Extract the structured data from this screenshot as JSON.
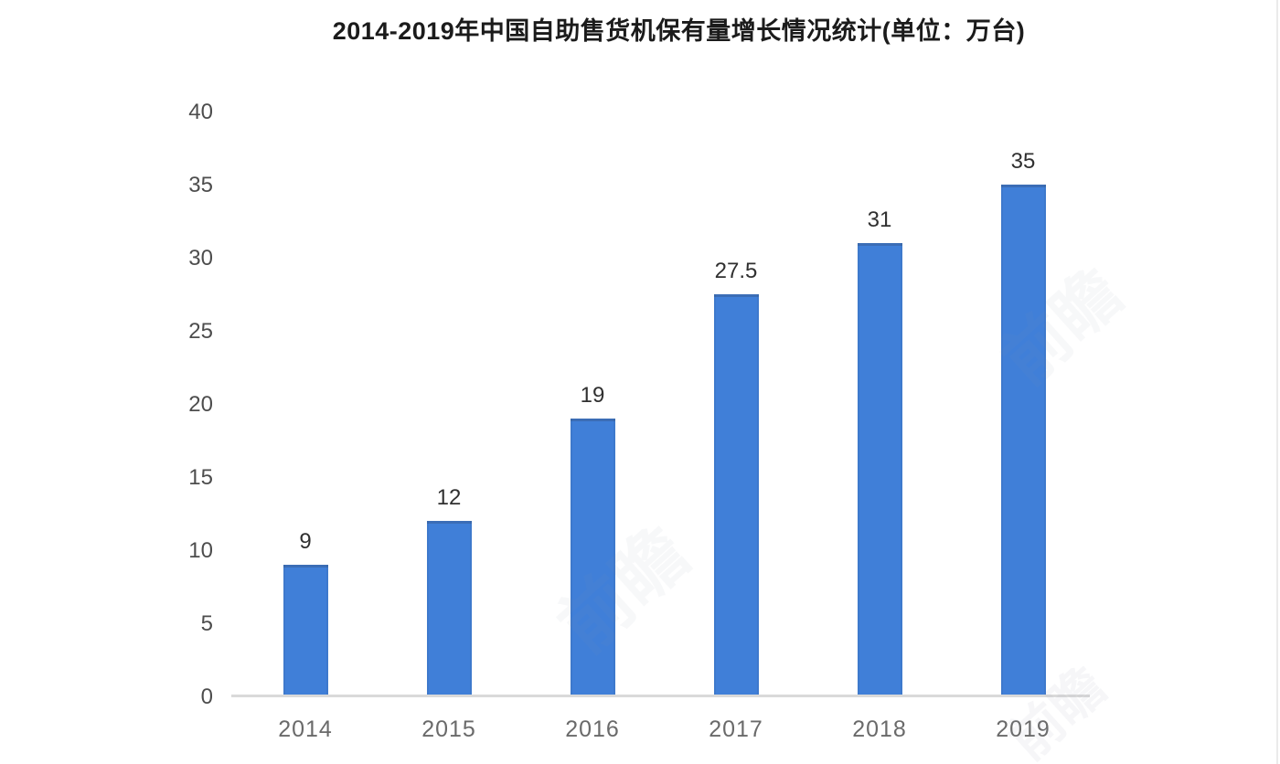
{
  "chart_data": {
    "type": "bar",
    "title": "2014-2019年中国自助售货机保有量增长情况统计(单位：万台)",
    "categories": [
      "2014",
      "2015",
      "2016",
      "2017",
      "2018",
      "2019"
    ],
    "values": [
      9,
      12,
      19,
      27.5,
      31,
      35
    ],
    "value_labels": [
      "9",
      "12",
      "19",
      "27.5",
      "31",
      "35"
    ],
    "y_ticks": [
      40,
      35,
      30,
      25,
      20,
      15,
      10,
      5,
      0
    ],
    "ylim": [
      0,
      40
    ],
    "xlabel": "",
    "ylabel": "",
    "grid": false,
    "legend_position": "none",
    "bar_color": "#407fd8",
    "axis_line_color": "#d9d9d9",
    "y_tick_color": "#4d4d4d",
    "x_tick_color": "#6a6a6a",
    "title_color": "#1b1b1b",
    "watermark_text": "前瞻"
  }
}
